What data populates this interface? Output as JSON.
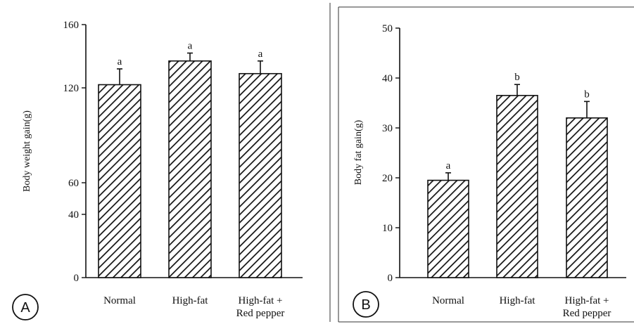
{
  "chart_data": [
    {
      "type": "bar",
      "panel_label": "A",
      "categories": [
        "Normal",
        "High-fat",
        "High-fat + Red pepper"
      ],
      "category_lines": [
        [
          "Normal"
        ],
        [
          "High-fat"
        ],
        [
          "High-fat +",
          "Red pepper"
        ]
      ],
      "values": [
        122,
        137,
        129
      ],
      "errors": [
        10,
        5,
        8
      ],
      "significance": [
        "a",
        "a",
        "a"
      ],
      "title": "",
      "xlabel": "",
      "ylabel": "Body weight gain(g)",
      "ylim": [
        0,
        160
      ],
      "yticks": [
        0,
        40,
        60,
        120,
        160
      ],
      "ytick_labels": [
        "0",
        "40",
        "60",
        "120",
        "160"
      ],
      "grid": false,
      "bar_fill": "diagonal-hatch"
    },
    {
      "type": "bar",
      "panel_label": "B",
      "categories": [
        "Normal",
        "High-fat",
        "High-fat + Red pepper"
      ],
      "category_lines": [
        [
          "Normal"
        ],
        [
          "High-fat"
        ],
        [
          "High-fat +",
          "Red pepper"
        ]
      ],
      "values": [
        19.5,
        36.5,
        32
      ],
      "errors": [
        1.5,
        2.2,
        3.3
      ],
      "significance": [
        "a",
        "b",
        "b"
      ],
      "title": "",
      "xlabel": "",
      "ylabel": "Body fat gain(g)",
      "ylim": [
        0,
        50
      ],
      "yticks": [
        0,
        10,
        20,
        30,
        40,
        50
      ],
      "ytick_labels": [
        "0",
        "10",
        "20",
        "30",
        "40",
        "50"
      ],
      "grid": false,
      "bar_fill": "diagonal-hatch"
    }
  ]
}
